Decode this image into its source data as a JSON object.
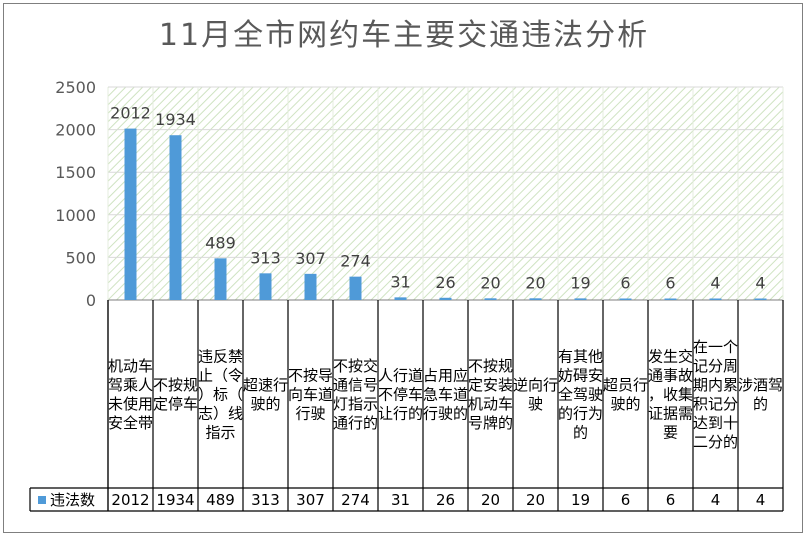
{
  "chart_data": {
    "type": "bar",
    "title": "11月全市网约车主要交通违法分析",
    "xlabel": "",
    "ylabel": "",
    "ylim": [
      0,
      2500
    ],
    "yticks": [
      "0",
      "500",
      "1000",
      "1500",
      "2000",
      "2500"
    ],
    "grid": true,
    "legend_placement": "data-table",
    "bar_color": "#4f9ad8",
    "categories": [
      "机动车驾乘人未使用安全带",
      "不按规定停车",
      "违反禁止（令）标（志）线指示",
      "超速行驶的",
      "不按导向车道行驶",
      "不按交通信号灯指示通行的",
      "人行道不停车让行的",
      "占用应急车道行驶的",
      "不按规定安装机动车号牌的",
      "逆向行驶",
      "有其他妨碍安全驾驶的行为的",
      "超员行驶的",
      "发生交通事故，收集证据需要",
      "在一个记分周期内累积记分达到十二分的",
      "涉酒驾的"
    ],
    "series": [
      {
        "name": "违法数",
        "values": [
          2012,
          1934,
          489,
          313,
          307,
          274,
          31,
          26,
          20,
          20,
          19,
          6,
          6,
          4,
          4
        ],
        "labels": [
          "2012",
          "1934",
          "489",
          "313",
          "307",
          "274",
          "31",
          "26",
          "20",
          "20",
          "19",
          "6",
          "6",
          "4",
          "4"
        ]
      }
    ]
  }
}
